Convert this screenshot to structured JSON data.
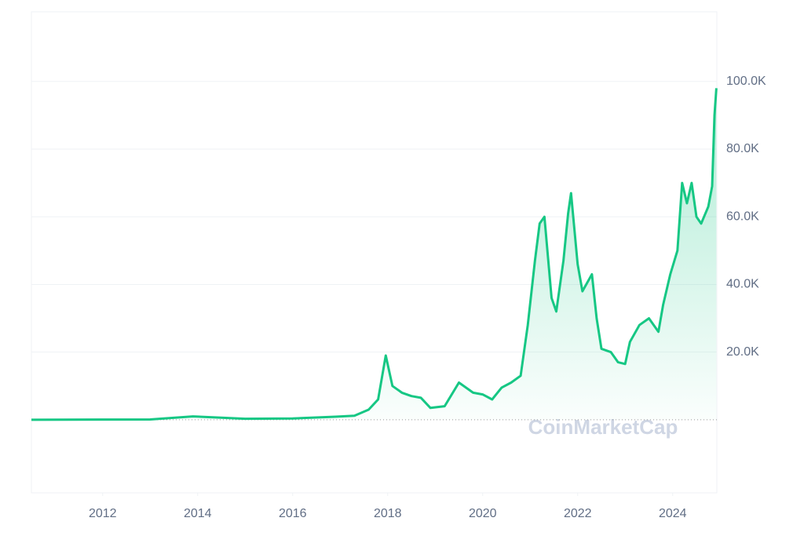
{
  "chart_data": {
    "type": "line",
    "watermark": "CoinMarketCap",
    "color": "#16c784",
    "grid": true,
    "xlim": [
      2010.5,
      2024.93
    ],
    "xticks": [
      2012,
      2014,
      2016,
      2018,
      2020,
      2022,
      2024
    ],
    "ylim": [
      -21600,
      120600
    ],
    "yticks": [
      {
        "value": 20000,
        "label": "20.0K"
      },
      {
        "value": 40000,
        "label": "40.0K"
      },
      {
        "value": 60000,
        "label": "60.0K"
      },
      {
        "value": 80000,
        "label": "80.0K"
      },
      {
        "value": 100000,
        "label": "100.0K"
      }
    ],
    "x": [
      2010.5,
      2013.0,
      2013.9,
      2014.5,
      2015.0,
      2016.0,
      2016.9,
      2017.3,
      2017.6,
      2017.8,
      2017.96,
      2018.1,
      2018.3,
      2018.5,
      2018.7,
      2018.9,
      2019.2,
      2019.5,
      2019.8,
      2020.0,
      2020.2,
      2020.4,
      2020.6,
      2020.8,
      2020.95,
      2021.1,
      2021.2,
      2021.3,
      2021.45,
      2021.55,
      2021.7,
      2021.8,
      2021.86,
      2022.0,
      2022.1,
      2022.3,
      2022.4,
      2022.5,
      2022.7,
      2022.85,
      2023.0,
      2023.1,
      2023.3,
      2023.5,
      2023.7,
      2023.8,
      2023.95,
      2024.1,
      2024.2,
      2024.3,
      2024.4,
      2024.5,
      2024.6,
      2024.75,
      2024.83,
      2024.88,
      2024.92
    ],
    "values": [
      0,
      100,
      1000,
      600,
      300,
      400,
      900,
      1200,
      3000,
      6000,
      19000,
      10000,
      8000,
      7000,
      6500,
      3500,
      4000,
      11000,
      8000,
      7500,
      6000,
      9500,
      11000,
      13000,
      28000,
      47000,
      58000,
      60000,
      36000,
      32000,
      47000,
      61000,
      67000,
      46000,
      38000,
      43000,
      30000,
      21000,
      20000,
      17000,
      16500,
      23000,
      28000,
      30000,
      26000,
      34000,
      43000,
      50000,
      70000,
      64000,
      70000,
      60000,
      58000,
      63000,
      69000,
      90000,
      98000
    ]
  }
}
